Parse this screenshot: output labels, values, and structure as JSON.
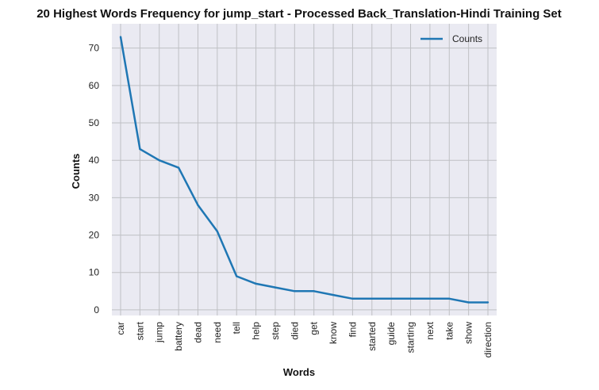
{
  "chart_data": {
    "type": "line",
    "title": "20 Highest Words Frequency for jump_start - Processed Back_Translation-Hindi Training Set",
    "xlabel": "Words",
    "ylabel": "Counts",
    "categories": [
      "car",
      "start",
      "jump",
      "battery",
      "dead",
      "need",
      "tell",
      "help",
      "step",
      "died",
      "get",
      "know",
      "find",
      "started",
      "guide",
      "starting",
      "next",
      "take",
      "show",
      "direction"
    ],
    "series": [
      {
        "name": "Counts",
        "values": [
          73,
          43,
          40,
          38,
          28,
          21,
          9,
          7,
          6,
          5,
          5,
          4,
          3,
          3,
          3,
          3,
          3,
          3,
          2,
          2
        ]
      }
    ],
    "ylim": [
      -1.5,
      76.5
    ],
    "yticks": [
      0,
      10,
      20,
      30,
      40,
      50,
      60,
      70
    ],
    "grid": true,
    "legend_position": "top-right",
    "colors": {
      "line": "#1f77b4",
      "plot_bg": "#eaeaf2",
      "grid": "#bfc0c4"
    }
  }
}
